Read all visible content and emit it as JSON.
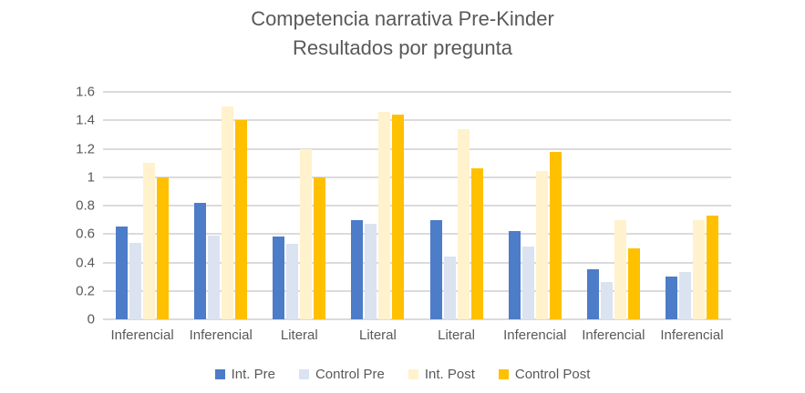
{
  "title": {
    "line1": "Competencia narrativa Pre-Kinder",
    "line2": "Resultados por pregunta"
  },
  "colors": {
    "title_text": "#595959",
    "axis_text": "#595959",
    "gridline": "#dbdbdb",
    "int_pre": "#4d7cc8",
    "control_pre": "#dbe3f1",
    "int_post": "#fff2cc",
    "control_post": "#ffc000"
  },
  "chart_data": {
    "type": "bar",
    "title": "Competencia narrativa Pre-Kinder Resultados por pregunta",
    "categories": [
      "Inferencial",
      "Inferencial",
      "Literal",
      "Literal",
      "Literal",
      "Inferencial",
      "Inferencial",
      "Inferencial"
    ],
    "series": [
      {
        "name": "Int. Pre",
        "color": "#4d7cc8",
        "values": [
          0.65,
          0.82,
          0.58,
          0.7,
          0.7,
          0.62,
          0.35,
          0.3
        ]
      },
      {
        "name": "Control Pre",
        "color": "#dbe3f1",
        "values": [
          0.54,
          0.59,
          0.53,
          0.67,
          0.44,
          0.51,
          0.26,
          0.33
        ]
      },
      {
        "name": "Int. Post",
        "color": "#fff2cc",
        "values": [
          1.1,
          1.5,
          1.2,
          1.46,
          1.34,
          1.04,
          0.7,
          0.7
        ]
      },
      {
        "name": "Control Post",
        "color": "#ffc000",
        "values": [
          1.0,
          1.4,
          1.0,
          1.44,
          1.06,
          1.18,
          0.5,
          0.73
        ]
      }
    ],
    "xlabel": "",
    "ylabel": "",
    "ylim": [
      0,
      1.6
    ],
    "yticks": [
      {
        "value": 0,
        "label": "0"
      },
      {
        "value": 0.2,
        "label": "0.2"
      },
      {
        "value": 0.4,
        "label": "0.4"
      },
      {
        "value": 0.6,
        "label": "0.6"
      },
      {
        "value": 0.8,
        "label": "0.8"
      },
      {
        "value": 1,
        "label": "1"
      },
      {
        "value": 1.2,
        "label": "1.2"
      },
      {
        "value": 1.4,
        "label": "1.4"
      },
      {
        "value": 1.6,
        "label": "1.6"
      }
    ],
    "grid": true,
    "legend_position": "bottom"
  }
}
